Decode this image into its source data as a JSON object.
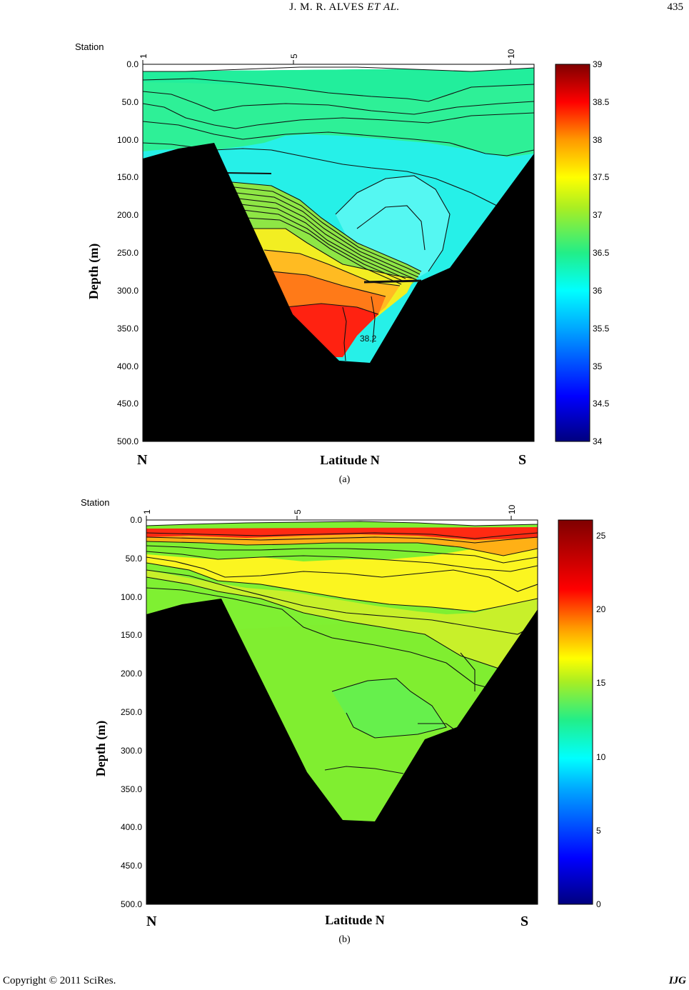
{
  "header": {
    "authors": "J. M. R. ALVES",
    "et_al_1": "ET",
    "et_al_2": "AL.",
    "page_number": "435"
  },
  "figures": [
    {
      "caption": "(a)",
      "station_label": "Station",
      "ylabel": "Depth (m)",
      "xlabel": "Latitude N",
      "north_label": "N",
      "south_label": "S",
      "station_ticks": [
        "1",
        "5",
        "10"
      ],
      "depth_ticks": [
        "0.0",
        "50.0",
        "100.0",
        "150.0",
        "200.0",
        "250.0",
        "300.0",
        "350.0",
        "400.0",
        "450.0",
        "500.0"
      ],
      "contour_label": "38.2",
      "colorbar_ticks": [
        "39",
        "38.5",
        "38",
        "37.5",
        "37",
        "36.5",
        "36",
        "35.5",
        "35",
        "34.5",
        "34"
      ]
    },
    {
      "caption": "(b)",
      "station_label": "Station",
      "ylabel": "Depth (m)",
      "xlabel": "Latitude N",
      "north_label": "N",
      "south_label": "S",
      "station_ticks": [
        "1",
        "5",
        "10"
      ],
      "depth_ticks": [
        "0.0",
        "50.0",
        "100.0",
        "150.0",
        "200.0",
        "250.0",
        "300.0",
        "350.0",
        "400.0",
        "450.0",
        "500.0"
      ],
      "colorbar_ticks": [
        "25",
        "20",
        "15",
        "10",
        "5",
        "0"
      ]
    }
  ],
  "chart_data": [
    {
      "type": "heatmap",
      "title": "(a)",
      "xlabel": "Latitude N",
      "ylabel": "Depth (m)",
      "x_ticks": [
        "1",
        "5",
        "10"
      ],
      "ylim": [
        500,
        0
      ],
      "colorbar_range": [
        34,
        39
      ],
      "colorbar_ticks": [
        34,
        34.5,
        35,
        35.5,
        36,
        36.5,
        37,
        37.5,
        38,
        38.5,
        39
      ],
      "annotations": [
        "38.2"
      ]
    },
    {
      "type": "heatmap",
      "title": "(b)",
      "xlabel": "Latitude N",
      "ylabel": "Depth (m)",
      "x_ticks": [
        "1",
        "5",
        "10"
      ],
      "ylim": [
        500,
        0
      ],
      "colorbar_range": [
        0,
        26
      ],
      "colorbar_ticks": [
        0,
        5,
        10,
        15,
        20,
        25
      ]
    }
  ],
  "footer": {
    "copyright": "Copyright © 2011 SciRes.",
    "journal": "IJG"
  }
}
